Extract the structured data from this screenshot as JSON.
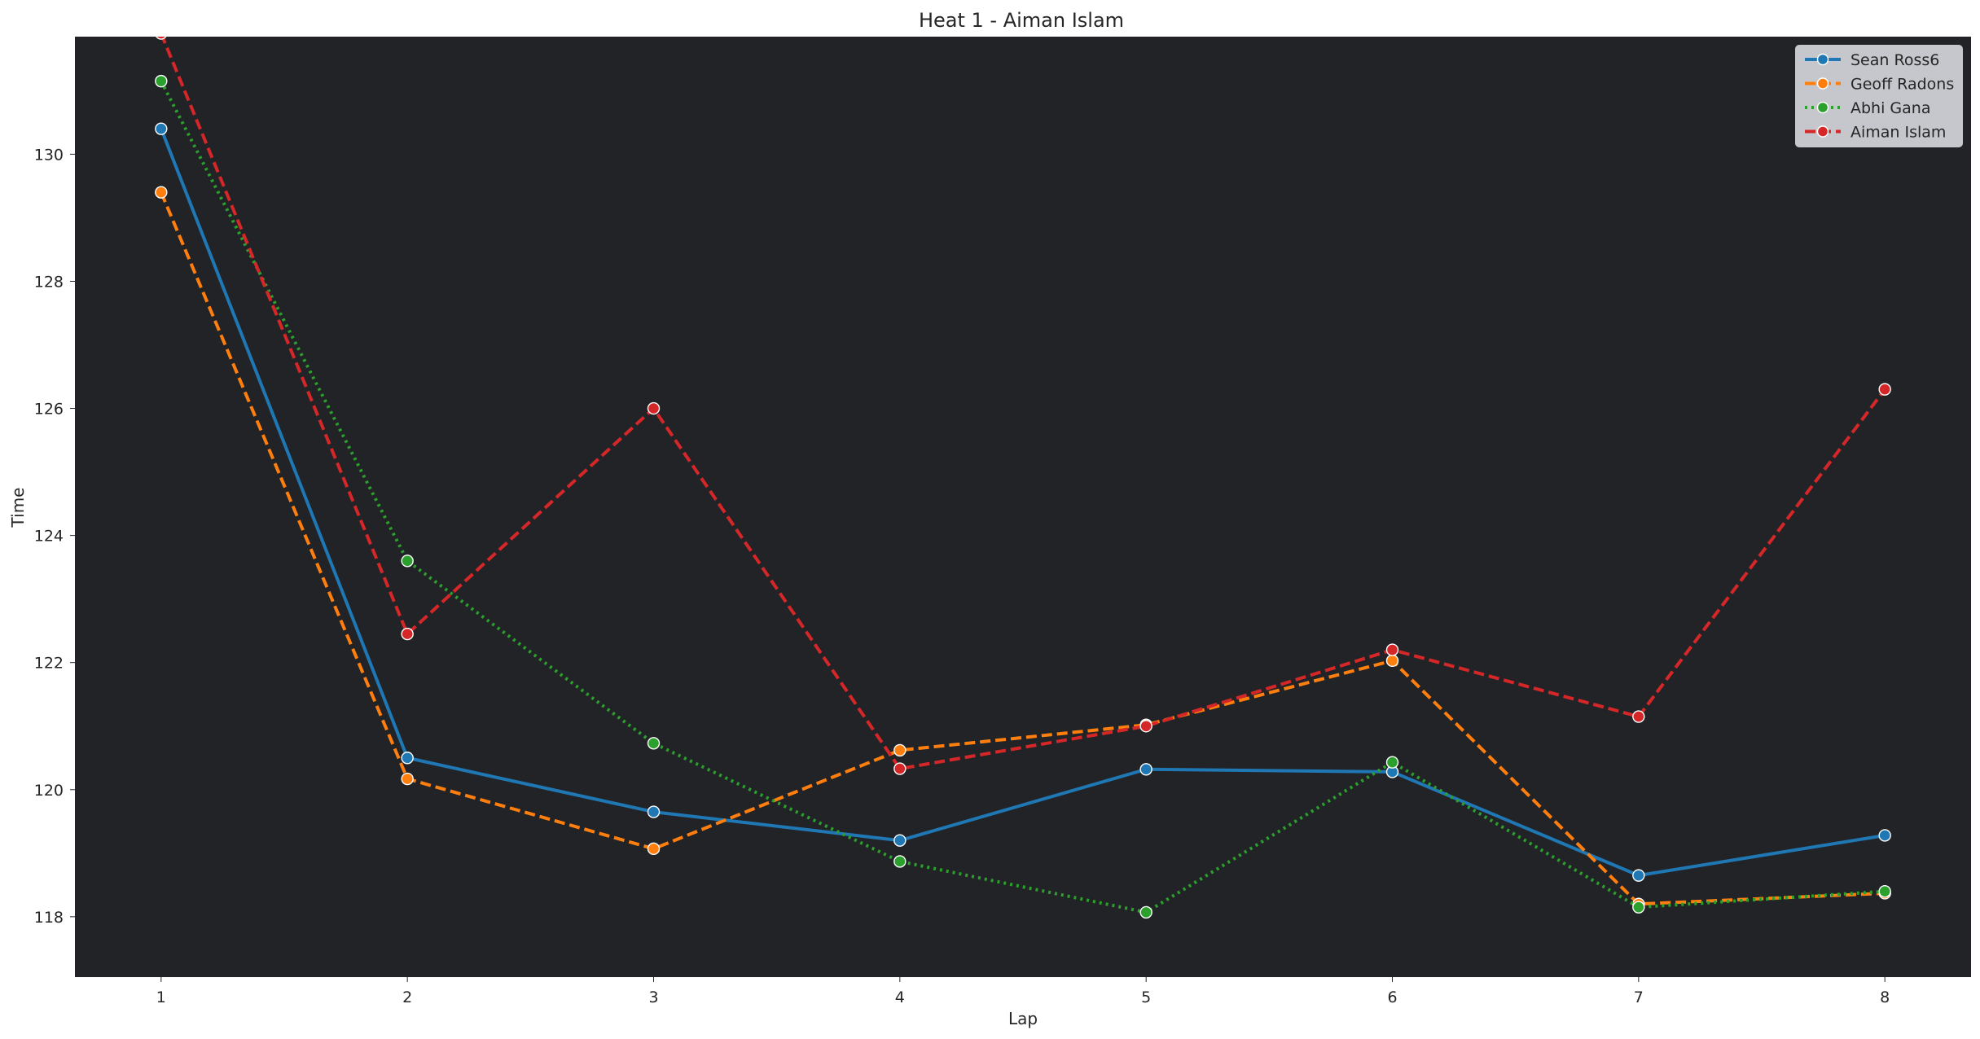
{
  "chart_data": {
    "type": "line",
    "title": "Heat 1 - Aiman Islam",
    "xlabel": "Lap",
    "ylabel": "Time",
    "x": [
      1,
      2,
      3,
      4,
      5,
      6,
      7,
      8
    ],
    "xlim": [
      0.65,
      8.35
    ],
    "ylim": [
      117.05,
      131.85
    ],
    "yticks": [
      118,
      120,
      122,
      124,
      126,
      128,
      130
    ],
    "grid": false,
    "legend_position": "top-right",
    "plot_background": "#212327",
    "legend_background": "#d0d1d6",
    "series": [
      {
        "name": "Sean Ross6",
        "color": "#1f77b4",
        "dash": "solid",
        "values": [
          130.4,
          120.5,
          119.65,
          119.2,
          120.32,
          120.28,
          118.65,
          119.28
        ]
      },
      {
        "name": "Geoff Radons",
        "color": "#ff7f0e",
        "dash": "dashed",
        "values": [
          129.4,
          120.17,
          119.07,
          120.62,
          121.02,
          122.03,
          118.2,
          118.37
        ]
      },
      {
        "name": "Abhi Gana",
        "color": "#2ca02c",
        "dash": "dotted",
        "values": [
          131.15,
          123.6,
          120.73,
          118.87,
          118.07,
          120.43,
          118.15,
          118.4
        ]
      },
      {
        "name": "Aiman Islam",
        "color": "#d62728",
        "dash": "dashed",
        "values": [
          131.9,
          122.45,
          126.0,
          120.33,
          121.0,
          122.2,
          121.15,
          126.3
        ]
      }
    ]
  }
}
